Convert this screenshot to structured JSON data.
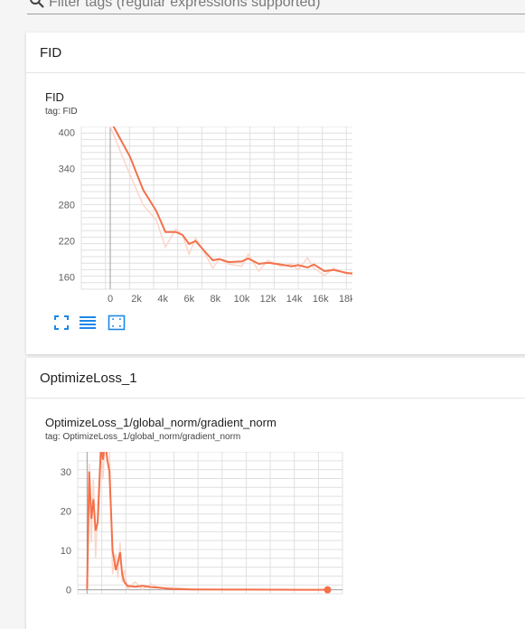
{
  "filter": {
    "placeholder": "Filter tags (regular expressions supported)",
    "icon": "search-icon"
  },
  "sections": [
    {
      "title": "FID",
      "card": {
        "title": "FID",
        "tag": "tag: FID",
        "actions": [
          "fullscreen-icon",
          "data-table-icon",
          "fit-domain-icon"
        ]
      }
    },
    {
      "title": "OptimizeLoss_1",
      "card": {
        "title": "OptimizeLoss_1/global_norm/gradient_norm",
        "tag": "tag: OptimizeLoss_1/global_norm/gradient_norm"
      }
    }
  ],
  "colors": {
    "line": "#f4714a",
    "raw_line": "#fbd6cb",
    "grid": "#e0e0e0",
    "axis": "#9e9e9e",
    "icon_blue": "#1e88e5"
  },
  "chart_data": [
    {
      "type": "line",
      "ylim": [
        140,
        410
      ],
      "xlim": [
        -2200,
        19800
      ],
      "x_ticks": [
        "0",
        "2k",
        "4k",
        "6k",
        "8k",
        "10k",
        "12k",
        "14k",
        "16k",
        "18k"
      ],
      "x_tick_values": [
        0,
        2000,
        4000,
        6000,
        8000,
        10000,
        12000,
        14000,
        16000,
        18000
      ],
      "y_ticks": [
        "400",
        "340",
        "280",
        "220",
        "160"
      ],
      "y_tick_values": [
        400,
        340,
        280,
        220,
        160
      ],
      "series": [
        {
          "smoothed": [
            [
              0,
              420
            ],
            [
              1500,
              360
            ],
            [
              2500,
              305
            ],
            [
              3500,
              270
            ],
            [
              4200,
              235
            ],
            [
              5000,
              235
            ],
            [
              5500,
              230
            ],
            [
              6000,
              215
            ],
            [
              6500,
              220
            ],
            [
              7300,
              200
            ],
            [
              7800,
              188
            ],
            [
              8300,
              190
            ],
            [
              9000,
              185
            ],
            [
              10000,
              186
            ],
            [
              10500,
              191
            ],
            [
              11300,
              182
            ],
            [
              12000,
              184
            ],
            [
              13000,
              181
            ],
            [
              13800,
              178
            ],
            [
              14300,
              180
            ],
            [
              15000,
              176
            ],
            [
              15500,
              181
            ],
            [
              16300,
              170
            ],
            [
              17000,
              172
            ],
            [
              18000,
              167
            ],
            [
              18800,
              165
            ],
            [
              19300,
              168
            ],
            [
              19500,
              167
            ]
          ],
          "raw": [
            [
              0,
              410
            ],
            [
              1500,
              330
            ],
            [
              2500,
              280
            ],
            [
              3500,
              255
            ],
            [
              4200,
              210
            ],
            [
              5000,
              240
            ],
            [
              5500,
              230
            ],
            [
              6000,
              198
            ],
            [
              6500,
              225
            ],
            [
              7300,
              195
            ],
            [
              7800,
              175
            ],
            [
              8300,
              190
            ],
            [
              9000,
              182
            ],
            [
              10000,
              178
            ],
            [
              10500,
              198
            ],
            [
              11300,
              170
            ],
            [
              12000,
              188
            ],
            [
              13000,
              178
            ],
            [
              13800,
              182
            ],
            [
              14300,
              172
            ],
            [
              15000,
              192
            ],
            [
              15500,
              175
            ],
            [
              16300,
              163
            ],
            [
              17000,
              175
            ],
            [
              18000,
              165
            ],
            [
              18800,
              170
            ],
            [
              19300,
              160
            ],
            [
              19500,
              166
            ]
          ]
        }
      ]
    },
    {
      "type": "line",
      "ylim": [
        -1,
        35
      ],
      "xlim": [
        -8.8,
        240
      ],
      "y_ticks": [
        "30",
        "20",
        "10",
        "0"
      ],
      "y_tick_values": [
        30,
        20,
        10,
        0
      ],
      "series": [
        {
          "smoothed": [
            [
              0,
              0
            ],
            [
              2,
              30
            ],
            [
              4,
              18
            ],
            [
              6,
              23
            ],
            [
              8,
              15
            ],
            [
              10,
              17
            ],
            [
              13,
              36
            ],
            [
              15,
              33
            ],
            [
              17,
              38
            ],
            [
              19,
              33
            ],
            [
              21,
              30
            ],
            [
              24,
              10
            ],
            [
              27,
              5
            ],
            [
              29,
              7
            ],
            [
              31,
              9.5
            ],
            [
              33,
              4
            ],
            [
              35,
              2
            ],
            [
              38,
              1
            ],
            [
              45,
              0.8
            ],
            [
              52,
              1
            ],
            [
              60,
              0.7
            ],
            [
              70,
              0.5
            ],
            [
              80,
              0.2
            ],
            [
              100,
              0.1
            ],
            [
              150,
              0.05
            ],
            [
              200,
              0.02
            ],
            [
              226,
              0
            ]
          ],
          "raw": [
            [
              0,
              0
            ],
            [
              2,
              32
            ],
            [
              4,
              12
            ],
            [
              6,
              28
            ],
            [
              8,
              8
            ],
            [
              10,
              20
            ],
            [
              13,
              38
            ],
            [
              15,
              28
            ],
            [
              17,
              40
            ],
            [
              19,
              35
            ],
            [
              21,
              36
            ],
            [
              24,
              4
            ],
            [
              27,
              9
            ],
            [
              29,
              3
            ],
            [
              31,
              12
            ],
            [
              33,
              2
            ],
            [
              35,
              5
            ],
            [
              38,
              0.2
            ],
            [
              45,
              2
            ],
            [
              52,
              0.1
            ],
            [
              60,
              1.5
            ],
            [
              70,
              0.2
            ],
            [
              80,
              0.6
            ],
            [
              100,
              0.1
            ],
            [
              150,
              0.1
            ],
            [
              200,
              0.03
            ],
            [
              226,
              0
            ]
          ]
        }
      ]
    }
  ]
}
